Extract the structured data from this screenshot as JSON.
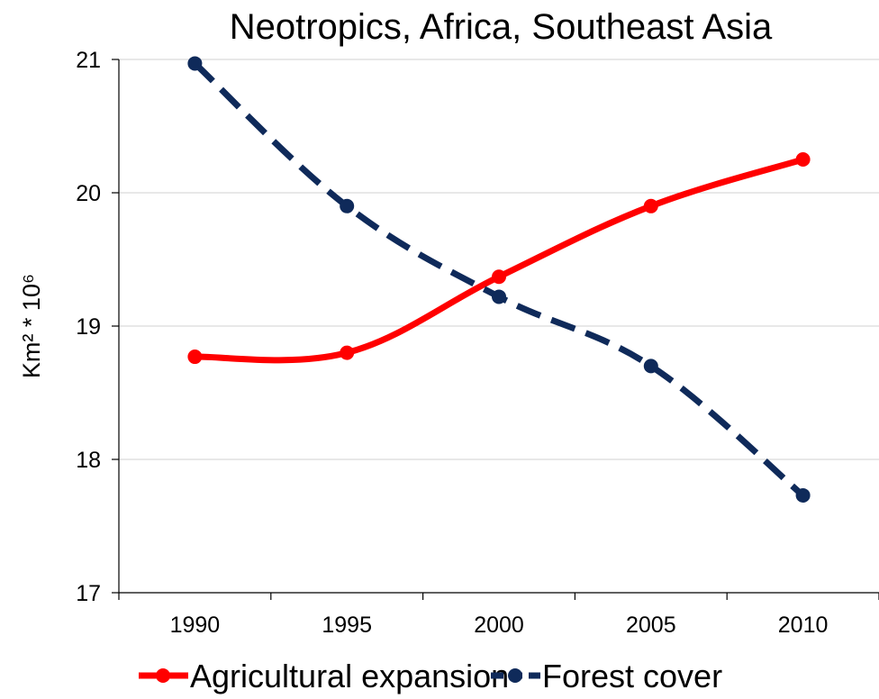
{
  "chart_data": {
    "type": "line",
    "title": "Neotropics, Africa, Southeast Asia",
    "xlabel": "",
    "ylabel": "Km² * 10⁶",
    "x": [
      "1990",
      "1995",
      "2000",
      "2005",
      "2010"
    ],
    "ylim": [
      17,
      21
    ],
    "yticks": [
      "17",
      "18",
      "19",
      "20",
      "21"
    ],
    "grid": true,
    "legend_position": "bottom",
    "series": [
      {
        "name": "Agricultural expansion",
        "color": "#ff0000",
        "style": "solid",
        "values": [
          18.77,
          18.8,
          19.37,
          19.9,
          20.25
        ]
      },
      {
        "name": "Forest cover",
        "color": "#0f2a5a",
        "style": "dashed",
        "values": [
          20.97,
          19.9,
          19.22,
          18.7,
          17.73
        ]
      }
    ]
  }
}
